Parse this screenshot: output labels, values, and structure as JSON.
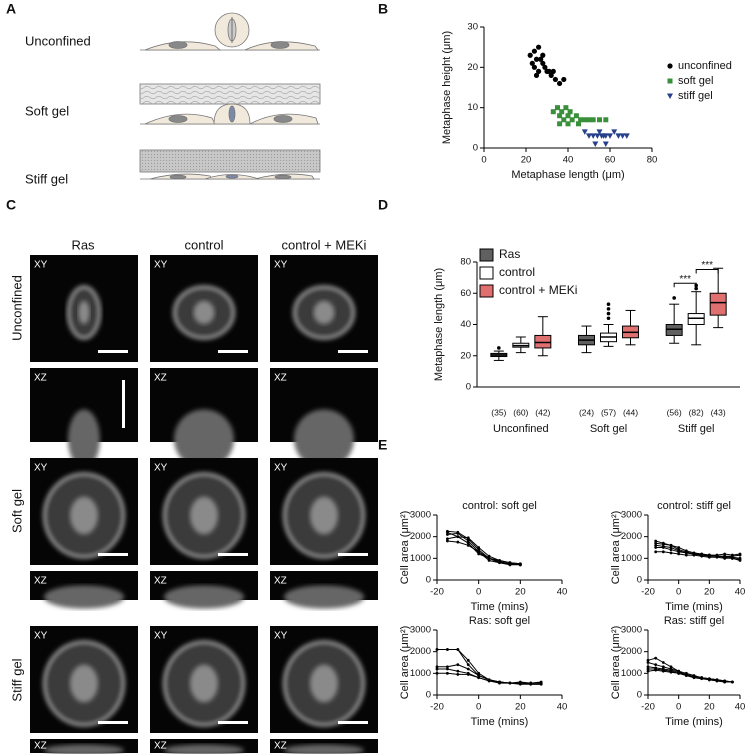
{
  "panel_labels": [
    "A",
    "B",
    "C",
    "D",
    "E"
  ],
  "schematic": {
    "conditions": [
      "Unconfined",
      "Soft gel",
      "Stiff gel"
    ]
  },
  "micrographs": {
    "columns": [
      "Ras",
      "control",
      "control + MEKi"
    ],
    "rows": [
      "Unconfined",
      "Soft gel",
      "Stiff gel"
    ],
    "views": [
      "XY",
      "XZ"
    ]
  },
  "chart_data": [
    {
      "type": "scatter",
      "x_label": "Metaphase length (μm)",
      "y_label": "Metaphase height (μm)",
      "xlim": [
        0,
        80
      ],
      "xticks": [
        0,
        20,
        40,
        60,
        80
      ],
      "ylim": [
        0,
        30
      ],
      "yticks": [
        0,
        10,
        20,
        30
      ],
      "legend": "right",
      "series": [
        {
          "name": "unconfined",
          "color": "#000000",
          "marker": "circle",
          "x": [
            22,
            23,
            24,
            24,
            25,
            26,
            26,
            27,
            28,
            29,
            30,
            32,
            34,
            36,
            28,
            31,
            25,
            33,
            38
          ],
          "values": [
            23,
            21,
            24,
            20,
            22,
            25,
            19,
            22,
            21,
            20,
            19,
            18,
            17,
            16,
            23,
            19,
            18,
            19,
            17
          ]
        },
        {
          "name": "soft gel",
          "color": "#3a8f3a",
          "marker": "square",
          "x": [
            33,
            35,
            36,
            37,
            38,
            39,
            40,
            41,
            42,
            44,
            46,
            48,
            50,
            52,
            55,
            58,
            36,
            40,
            45
          ],
          "values": [
            9,
            10,
            8,
            9,
            7,
            10,
            8,
            9,
            7,
            8,
            7,
            7,
            7,
            7,
            7,
            7,
            6,
            6,
            6
          ]
        },
        {
          "name": "stiff gel",
          "color": "#27408b",
          "marker": "triangle",
          "x": [
            50,
            52,
            54,
            55,
            56,
            57,
            58,
            60,
            62,
            64,
            66,
            68,
            48,
            53,
            58
          ],
          "values": [
            3,
            3,
            3,
            4,
            3,
            3,
            3,
            3,
            4,
            3,
            3,
            3,
            4,
            1,
            1
          ]
        }
      ]
    },
    {
      "type": "box",
      "y_label": "Metaphase length (μm)",
      "ylim": [
        0,
        80
      ],
      "yticks": [
        0,
        20,
        40,
        60,
        80
      ],
      "categories": [
        "Unconfined",
        "Soft gel",
        "Stiff gel"
      ],
      "legend": "upper left",
      "series": [
        {
          "name": "Ras",
          "color": "#606060",
          "values": [
            [
              17,
              19.5,
              20.5,
              21.5,
              23
            ],
            [
              22,
              27,
              30,
              33,
              39
            ],
            [
              28,
              33,
              37,
              40,
              53
            ]
          ],
          "outliers": [
            [
              25
            ],
            [],
            [
              57
            ]
          ],
          "counts": [
            "(35)",
            "(24)",
            "(56)"
          ]
        },
        {
          "name": "control",
          "color": "#ffffff",
          "values": [
            [
              22,
              25.5,
              26.5,
              28,
              32
            ],
            [
              26,
              29,
              32,
              34.5,
              40
            ],
            [
              27,
              40,
              44,
              47,
              61
            ]
          ],
          "outliers": [
            [],
            [
              44,
              47,
              50,
              53
            ],
            [
              63,
              65
            ]
          ],
          "counts": [
            "(60)",
            "(57)",
            "(82)"
          ]
        },
        {
          "name": "control + MEKi",
          "color": "#e07070",
          "values": [
            [
              20,
              25,
              28.5,
              33,
              45
            ],
            [
              27,
              31.5,
              35,
              39,
              49
            ],
            [
              38,
              46,
              54,
              60,
              76
            ]
          ],
          "outliers": [
            [],
            [],
            []
          ],
          "counts": [
            "(42)",
            "(44)",
            "(43)"
          ]
        }
      ],
      "annotations": [
        "***",
        "***"
      ]
    },
    {
      "type": "line",
      "title": "control: soft gel",
      "x_label": "Time (mins)",
      "y_label": "Cell area (μm²)",
      "xlim": [
        -20,
        40
      ],
      "xticks": [
        -20,
        0,
        20,
        40
      ],
      "ylim": [
        0,
        3000
      ],
      "yticks": [
        0,
        1000,
        2000,
        3000
      ],
      "color": "#000000",
      "x": [
        -15,
        -10,
        -5,
        0,
        5,
        10,
        15,
        20
      ],
      "series": [
        {
          "values": [
            2250,
            2200,
            1900,
            1400,
            1000,
            800,
            750,
            700
          ]
        },
        {
          "values": [
            2100,
            2150,
            1800,
            1300,
            900,
            800,
            700,
            700
          ]
        },
        {
          "values": [
            1900,
            2000,
            1700,
            1200,
            1000,
            850,
            750,
            700
          ]
        },
        {
          "values": [
            1800,
            1750,
            1600,
            1300,
            1000,
            900,
            800,
            750
          ]
        },
        {
          "values": [
            2200,
            2000,
            1950,
            1500,
            1100,
            900,
            800,
            750
          ]
        }
      ]
    },
    {
      "type": "line",
      "title": "control: stiff gel",
      "x_label": "Time (mins)",
      "y_label": "Cell area (μm²)",
      "xlim": [
        -20,
        40
      ],
      "xticks": [
        -20,
        0,
        20,
        40
      ],
      "ylim": [
        0,
        3000
      ],
      "yticks": [
        0,
        1000,
        2000,
        3000
      ],
      "color": "#000000",
      "x": [
        -15,
        -10,
        -5,
        0,
        5,
        10,
        15,
        20,
        25,
        30,
        35,
        40
      ],
      "series": [
        {
          "values": [
            1700,
            1650,
            1600,
            1400,
            1300,
            1200,
            1150,
            1100,
            1100,
            1100,
            1050,
            1000
          ]
        },
        {
          "values": [
            1600,
            1550,
            1500,
            1350,
            1250,
            1200,
            1150,
            1150,
            1100,
            1100,
            1100,
            1150
          ]
        },
        {
          "values": [
            1500,
            1500,
            1400,
            1300,
            1250,
            1200,
            1200,
            1150,
            1150,
            1200,
            1150,
            1200
          ]
        },
        {
          "values": [
            1300,
            1300,
            1250,
            1200,
            1150,
            1150,
            1100,
            1050,
            1050,
            1000,
            1000,
            950
          ]
        },
        {
          "values": [
            1800,
            1700,
            1600,
            1500,
            1350,
            1250,
            1200,
            1150,
            1100,
            1050,
            1000,
            900
          ]
        }
      ]
    },
    {
      "type": "line",
      "title": "Ras: soft gel",
      "x_label": "Time (mins)",
      "y_label": "Cell area (μm²)",
      "xlim": [
        -20,
        40
      ],
      "xticks": [
        -20,
        0,
        20,
        40
      ],
      "ylim": [
        0,
        3000
      ],
      "yticks": [
        0,
        1000,
        2000,
        3000
      ],
      "color": "#000000",
      "x": [
        -20,
        -15,
        -10,
        -5,
        0,
        5,
        10,
        15,
        20,
        25,
        30
      ],
      "series": [
        {
          "values": [
            2100,
            2100,
            2100,
            1600,
            1000,
            700,
            600,
            550,
            550,
            550,
            550
          ]
        },
        {
          "values": [
            1300,
            1300,
            1400,
            1200,
            900,
            700,
            600,
            550,
            600,
            550,
            600
          ]
        },
        {
          "values": [
            1200,
            1200,
            1100,
            1000,
            800,
            650,
            600,
            550,
            550,
            500,
            500
          ]
        },
        {
          "values": [
            1000,
            1000,
            950,
            950,
            800,
            650,
            550,
            550,
            500,
            500,
            500
          ]
        },
        {
          "values": [
            2100,
            2100,
            2100,
            1400,
            900,
            700,
            600,
            550,
            550,
            550,
            550
          ]
        }
      ]
    },
    {
      "type": "line",
      "title": "Ras: stiff gel",
      "x_label": "Time (mins)",
      "y_label": "Cell area (μm²)",
      "xlim": [
        -20,
        40
      ],
      "xticks": [
        -20,
        0,
        20,
        40
      ],
      "ylim": [
        0,
        3000
      ],
      "yticks": [
        0,
        1000,
        2000,
        3000
      ],
      "color": "#000000",
      "x": [
        -20,
        -15,
        -10,
        -5,
        0,
        5,
        10,
        15,
        20,
        25,
        30,
        35
      ],
      "series": [
        {
          "values": [
            1600,
            1700,
            1500,
            1300,
            1100,
            1000,
            900,
            800,
            750,
            700,
            650,
            600
          ]
        },
        {
          "values": [
            1500,
            1400,
            1300,
            1200,
            1100,
            900,
            850,
            800,
            750,
            700,
            650,
            600
          ]
        },
        {
          "values": [
            1300,
            1250,
            1200,
            1150,
            1050,
            950,
            850,
            800,
            700,
            650,
            600,
            600
          ]
        },
        {
          "values": [
            1100,
            1150,
            1100,
            1050,
            1000,
            900,
            800,
            750,
            700,
            650,
            600,
            600
          ]
        },
        {
          "values": [
            1200,
            1200,
            1150,
            1100,
            1000,
            900,
            850,
            800,
            750,
            700,
            600,
            600
          ]
        }
      ]
    }
  ]
}
